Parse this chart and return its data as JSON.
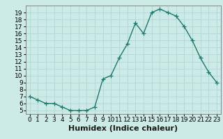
{
  "x": [
    0,
    1,
    2,
    3,
    4,
    5,
    6,
    7,
    8,
    9,
    10,
    11,
    12,
    13,
    14,
    15,
    16,
    17,
    18,
    19,
    20,
    21,
    22,
    23
  ],
  "y": [
    7,
    6.5,
    6,
    6,
    5.5,
    5,
    5,
    5,
    5.5,
    9.5,
    10,
    12.5,
    14.5,
    17.5,
    16,
    19,
    19.5,
    19,
    18.5,
    17,
    15,
    12.5,
    10.5,
    9
  ],
  "line_color": "#1a7a6e",
  "marker_color": "#1a7a6e",
  "bg_color": "#cceae6",
  "grid_color": "#aad4d0",
  "xlabel": "Humidex (Indice chaleur)",
  "xlim": [
    -0.5,
    23.5
  ],
  "ylim": [
    4.5,
    20.0
  ],
  "xticks": [
    0,
    1,
    2,
    3,
    4,
    5,
    6,
    7,
    8,
    9,
    10,
    11,
    12,
    13,
    14,
    15,
    16,
    17,
    18,
    19,
    20,
    21,
    22,
    23
  ],
  "yticks": [
    5,
    6,
    7,
    8,
    9,
    10,
    11,
    12,
    13,
    14,
    15,
    16,
    17,
    18,
    19
  ],
  "tick_fontsize": 6.5,
  "xlabel_fontsize": 8,
  "marker_size": 4,
  "line_width": 1.0
}
